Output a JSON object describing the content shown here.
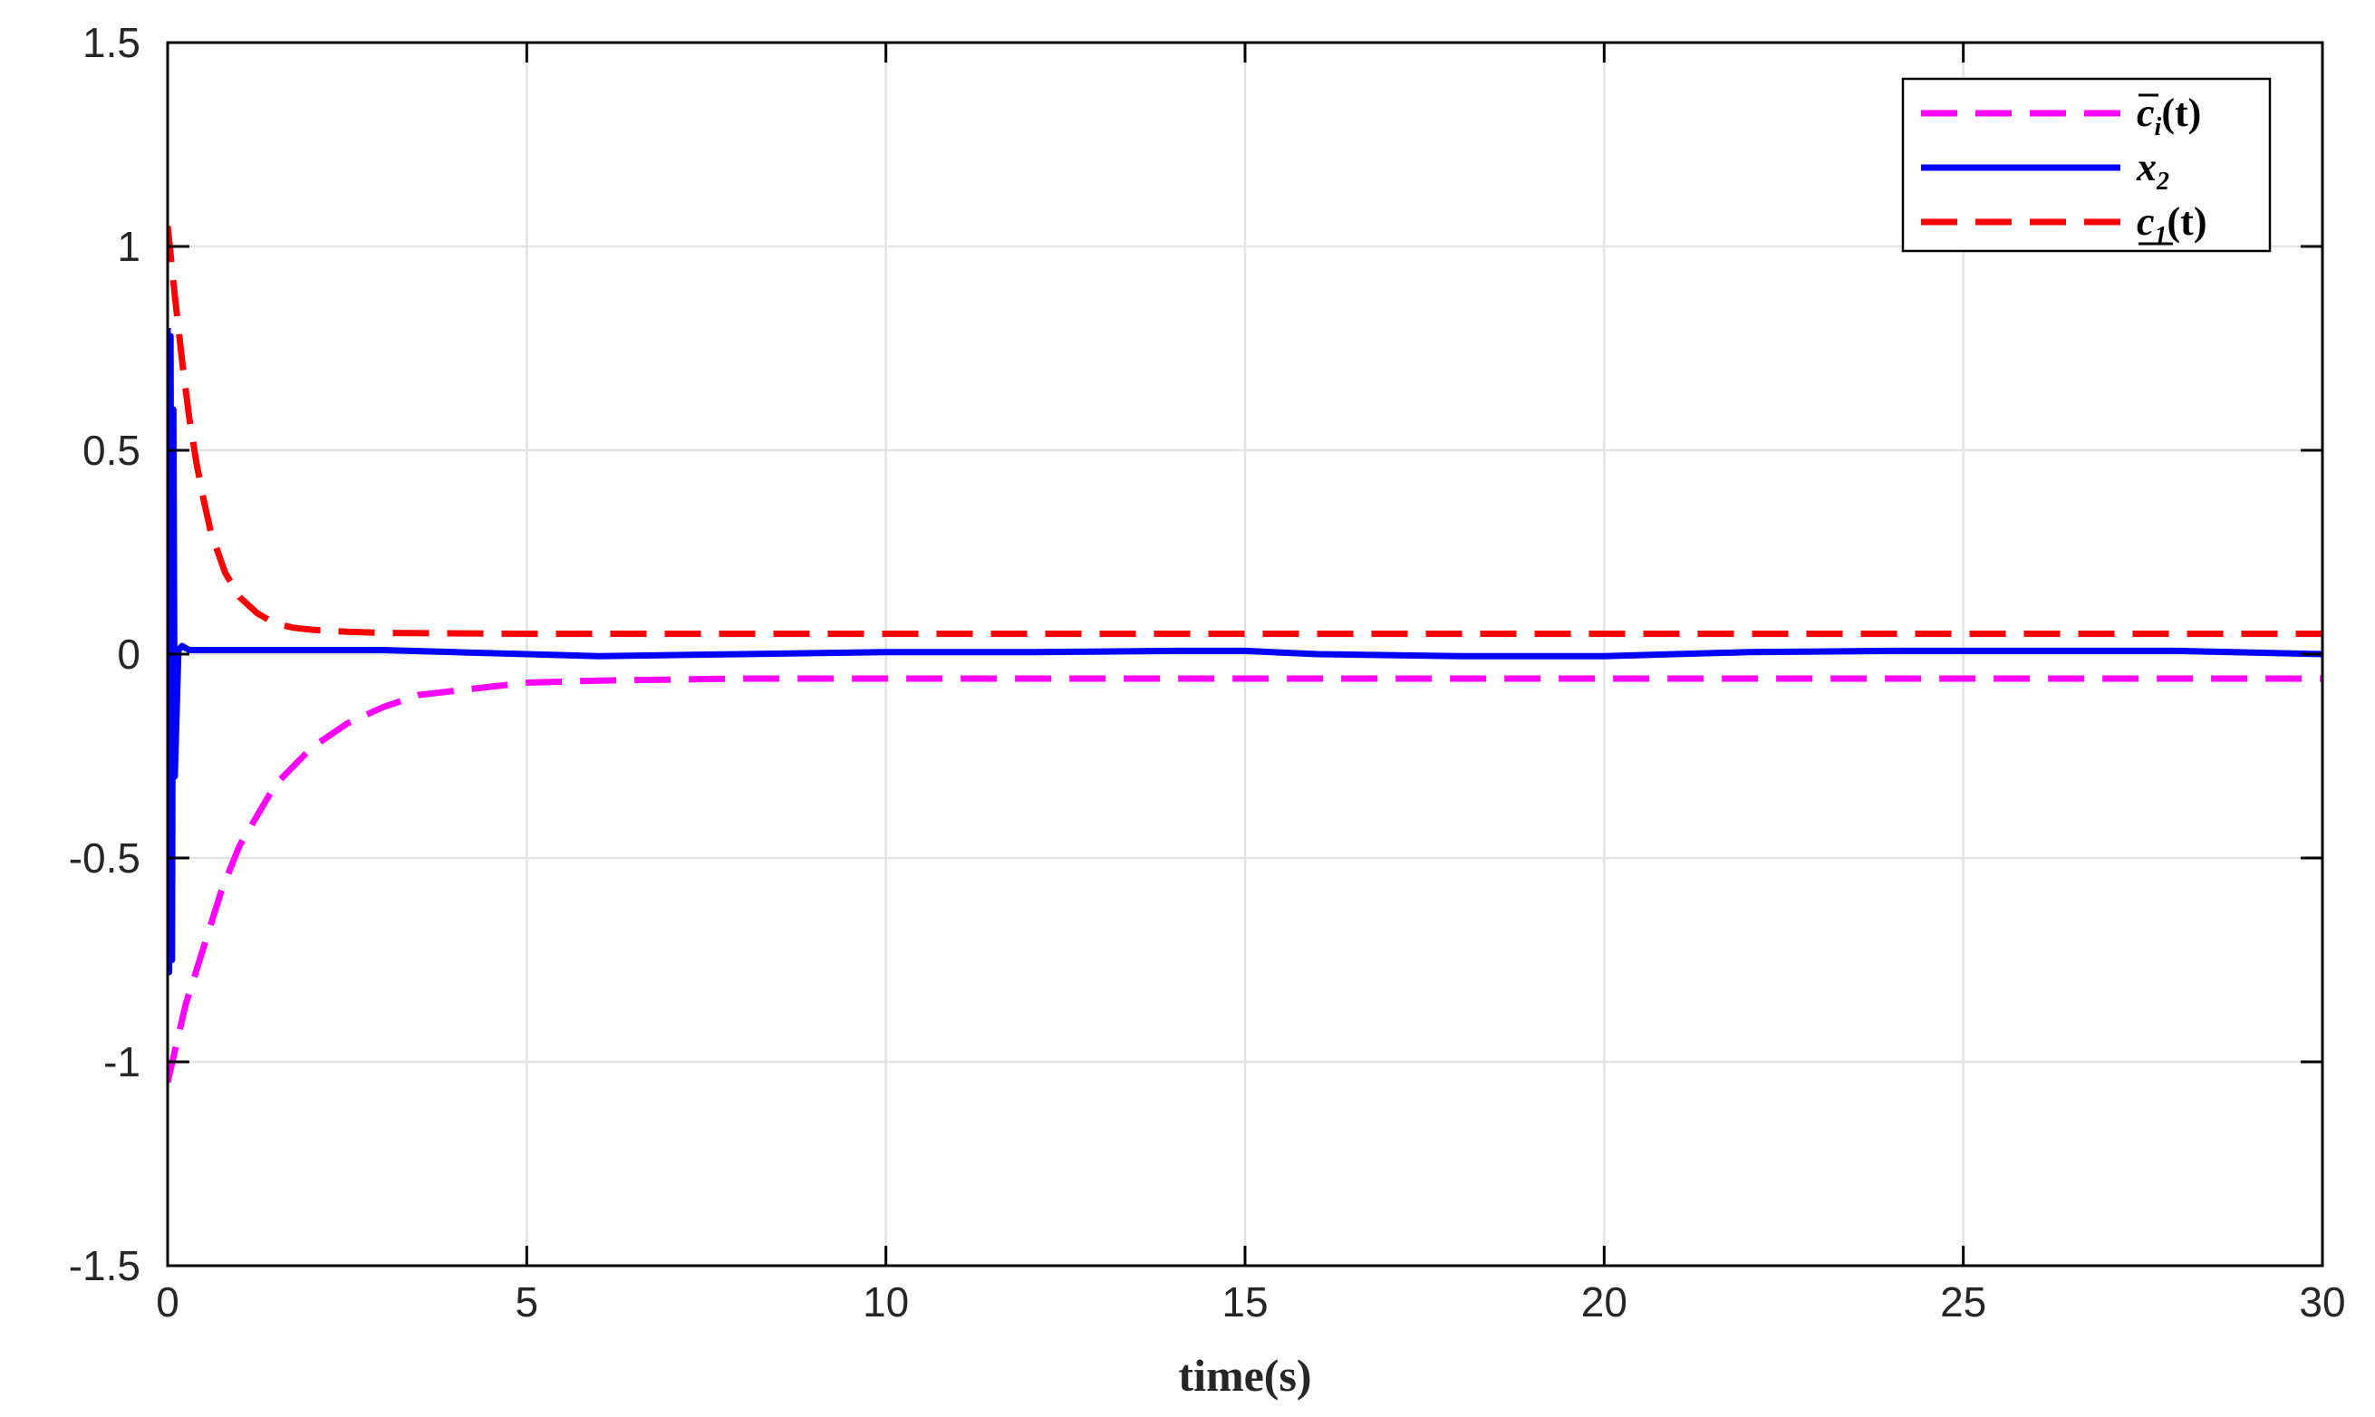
{
  "chart_data": {
    "type": "line",
    "title": "",
    "xlabel": "time(s)",
    "ylabel": "",
    "xlim": [
      0,
      30
    ],
    "ylim": [
      -1.5,
      1.5
    ],
    "xticks": [
      0,
      5,
      10,
      15,
      20,
      25,
      30
    ],
    "xtick_labels": [
      "0",
      "5",
      "10",
      "15",
      "20",
      "25",
      "30"
    ],
    "yticks": [
      -1.5,
      -1,
      -0.5,
      0,
      0.5,
      1,
      1.5
    ],
    "ytick_labels": [
      "-1.5",
      "-1",
      "-0.5",
      "0",
      "0.5",
      "1",
      "1.5"
    ],
    "grid": true,
    "legend_position": "top-right",
    "series": [
      {
        "name": "c̄i(t)",
        "legend": {
          "base": "c",
          "sub": "i",
          "suffix": "(t)",
          "decoration": "overline"
        },
        "color": "#ff00ff",
        "style": "dashed",
        "x": [
          0,
          0.25,
          0.5,
          0.75,
          1,
          1.5,
          2,
          2.5,
          3,
          3.5,
          4,
          4.5,
          5,
          6,
          8,
          10,
          15,
          20,
          25,
          30
        ],
        "y": [
          -1.05,
          -0.86,
          -0.72,
          -0.58,
          -0.47,
          -0.32,
          -0.23,
          -0.17,
          -0.13,
          -0.1,
          -0.09,
          -0.08,
          -0.07,
          -0.065,
          -0.06,
          -0.06,
          -0.06,
          -0.06,
          -0.06,
          -0.06
        ]
      },
      {
        "name": "x2",
        "legend": {
          "base": "x",
          "sub": "2",
          "suffix": "",
          "decoration": "none"
        },
        "color": "#0000ff",
        "style": "solid",
        "x": [
          0,
          0.02,
          0.04,
          0.06,
          0.08,
          0.1,
          0.15,
          0.2,
          0.3,
          1,
          2,
          3,
          4,
          5,
          6,
          8,
          10,
          12,
          14,
          15,
          16,
          18,
          20,
          22,
          24,
          26,
          28,
          30
        ],
        "y": [
          0.8,
          -0.78,
          0.78,
          -0.75,
          0.6,
          -0.3,
          0.01,
          0.02,
          0.01,
          0.01,
          0.01,
          0.01,
          0.005,
          0.0,
          -0.005,
          0.0,
          0.005,
          0.005,
          0.008,
          0.008,
          0.0,
          -0.005,
          -0.005,
          0.005,
          0.008,
          0.008,
          0.008,
          0.0
        ]
      },
      {
        "name": "c1(t)",
        "legend": {
          "base": "c",
          "sub": "1",
          "suffix": "(t)",
          "decoration": "underline"
        },
        "color": "#ff0000",
        "style": "dashed",
        "x": [
          0,
          0.1,
          0.2,
          0.3,
          0.4,
          0.5,
          0.6,
          0.8,
          1,
          1.25,
          1.5,
          1.75,
          2,
          2.5,
          3,
          5,
          10,
          15,
          20,
          25,
          30
        ],
        "y": [
          1.05,
          0.88,
          0.72,
          0.58,
          0.47,
          0.38,
          0.3,
          0.2,
          0.14,
          0.1,
          0.075,
          0.065,
          0.06,
          0.055,
          0.052,
          0.05,
          0.05,
          0.05,
          0.05,
          0.05,
          0.05
        ]
      }
    ]
  }
}
